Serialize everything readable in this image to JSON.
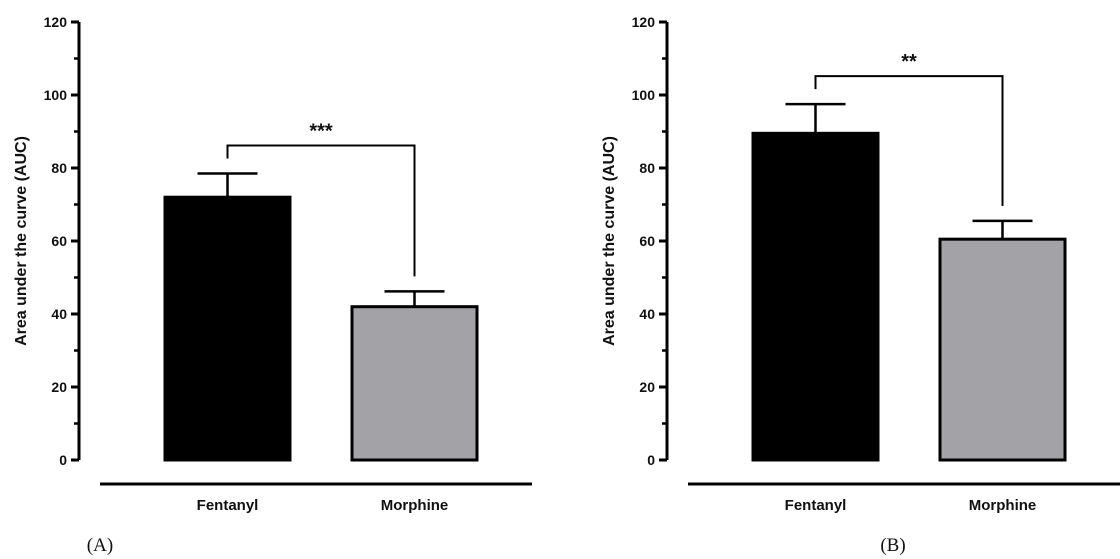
{
  "chart_data": [
    {
      "type": "bar",
      "panel_label": "(A)",
      "categories": [
        "Fentanyl",
        "Morphine"
      ],
      "values": [
        72,
        42
      ],
      "errors": [
        6.5,
        4.2
      ],
      "bar_colors": [
        "#000000",
        "#a3a2a6"
      ],
      "ylabel": "Area under the curve (AUC)",
      "ylim": [
        0,
        120
      ],
      "yticks": [
        0,
        20,
        40,
        60,
        80,
        100,
        120
      ],
      "significance": {
        "label": "***",
        "from": 0,
        "to": 1
      }
    },
    {
      "type": "bar",
      "panel_label": "(B)",
      "categories": [
        "Fentanyl",
        "Morphine"
      ],
      "values": [
        89.5,
        60.5
      ],
      "errors": [
        8,
        5
      ],
      "bar_colors": [
        "#000000",
        "#a3a2a6"
      ],
      "ylabel": "Area under the curve (AUC)",
      "ylim": [
        0,
        120
      ],
      "yticks": [
        0,
        20,
        40,
        60,
        80,
        100,
        120
      ],
      "significance": {
        "label": "**",
        "from": 0,
        "to": 1
      }
    }
  ]
}
